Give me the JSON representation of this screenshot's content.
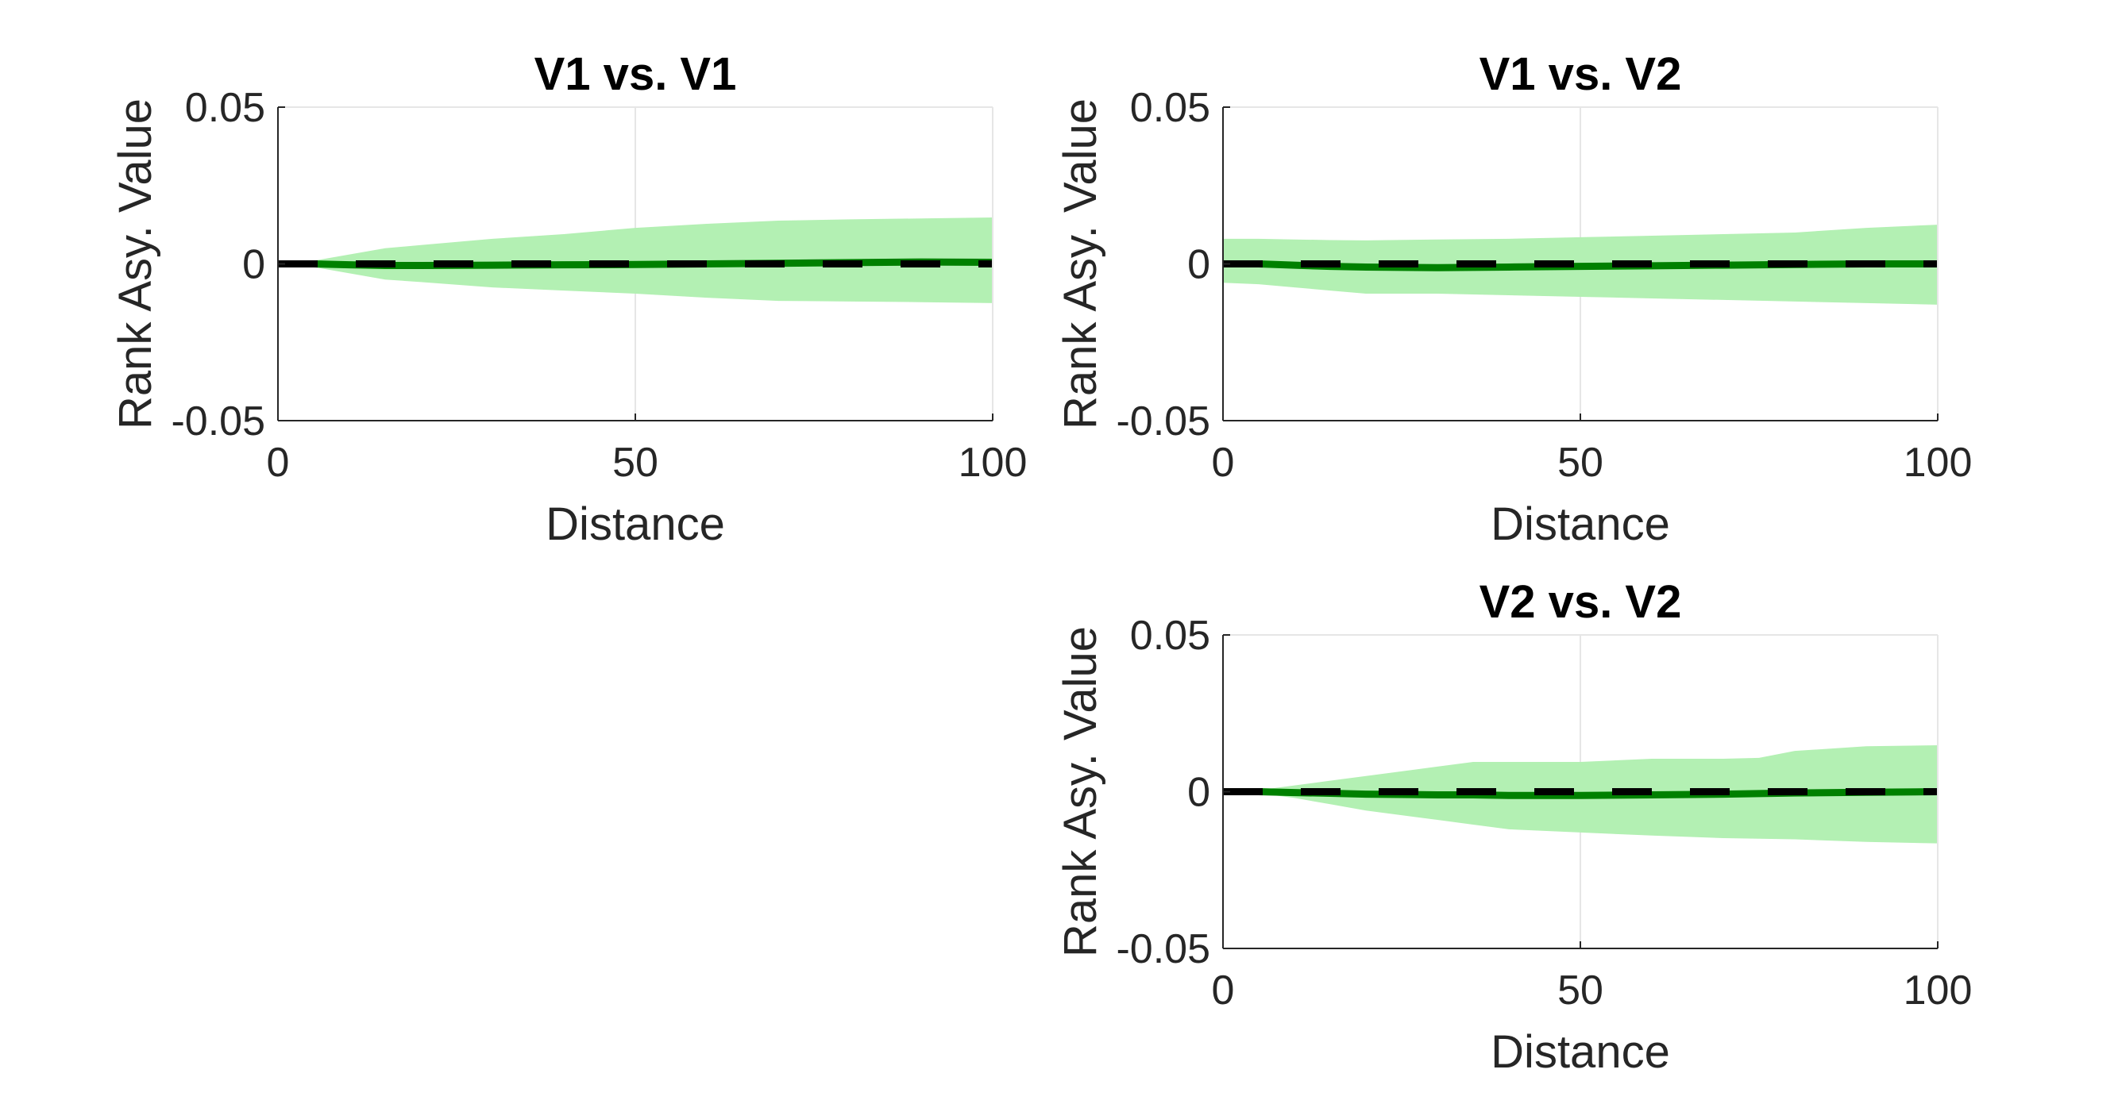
{
  "colors": {
    "band_fill": "#b3f0b3",
    "mean_line": "#008000",
    "zero_line": "#000000",
    "axis": "#262626",
    "grid": "#e6e6e6"
  },
  "chart_data": [
    {
      "type": "area",
      "title": "V1 vs. V1",
      "xlabel": "Distance",
      "ylabel": "Rank Asy. Value",
      "xlim": [
        0,
        100
      ],
      "ylim": [
        -0.05,
        0.05
      ],
      "xticks": [
        0,
        50,
        100
      ],
      "yticks": [
        -0.05,
        0,
        0.05
      ],
      "xtick_labels": [
        "0",
        "50",
        "100"
      ],
      "ytick_labels": [
        "-0.05",
        "0",
        "0.05"
      ],
      "grid": "vertical at x=50",
      "x": [
        0,
        5,
        10,
        15,
        20,
        30,
        40,
        50,
        60,
        70,
        80,
        90,
        100
      ],
      "band_upper": [
        0,
        0.001,
        0.003,
        0.005,
        0.006,
        0.008,
        0.0095,
        0.0115,
        0.0128,
        0.0138,
        0.0142,
        0.0145,
        0.0148
      ],
      "band_lower": [
        0,
        -0.001,
        -0.003,
        -0.005,
        -0.0058,
        -0.0075,
        -0.0085,
        -0.0095,
        -0.0108,
        -0.0118,
        -0.012,
        -0.0122,
        -0.0125
      ],
      "mean": [
        0,
        0,
        -0.0003,
        -0.0005,
        -0.0005,
        -0.0004,
        -0.0003,
        -0.0002,
        0,
        0.0002,
        0.0004,
        0.0006,
        0.0005
      ],
      "reference_line": 0
    },
    {
      "type": "area",
      "title": "V1 vs. V2",
      "xlabel": "Distance",
      "ylabel": "Rank Asy. Value",
      "xlim": [
        0,
        100
      ],
      "ylim": [
        -0.05,
        0.05
      ],
      "xticks": [
        0,
        50,
        100
      ],
      "yticks": [
        -0.05,
        0,
        0.05
      ],
      "xtick_labels": [
        "0",
        "50",
        "100"
      ],
      "ytick_labels": [
        "-0.05",
        "0",
        "0.05"
      ],
      "grid": "vertical at x=50",
      "x": [
        0,
        5,
        10,
        15,
        20,
        30,
        40,
        50,
        60,
        70,
        80,
        90,
        100
      ],
      "band_upper": [
        0.008,
        0.008,
        0.0078,
        0.0076,
        0.0075,
        0.0078,
        0.008,
        0.0085,
        0.009,
        0.0095,
        0.01,
        0.0115,
        0.0125
      ],
      "band_lower": [
        -0.006,
        -0.0065,
        -0.0075,
        -0.0085,
        -0.0095,
        -0.0095,
        -0.01,
        -0.0105,
        -0.011,
        -0.0115,
        -0.012,
        -0.0125,
        -0.013
      ],
      "mean": [
        0,
        0,
        -0.0004,
        -0.0008,
        -0.001,
        -0.0012,
        -0.001,
        -0.0008,
        -0.0006,
        -0.0004,
        -0.0002,
        0,
        0
      ],
      "reference_line": 0
    },
    {
      "type": "area",
      "title": "V2 vs. V2",
      "xlabel": "Distance",
      "ylabel": "Rank Asy. Value",
      "xlim": [
        0,
        100
      ],
      "ylim": [
        -0.05,
        0.05
      ],
      "xticks": [
        0,
        50,
        100
      ],
      "yticks": [
        -0.05,
        0,
        0.05
      ],
      "xtick_labels": [
        "0",
        "50",
        "100"
      ],
      "ytick_labels": [
        "-0.05",
        "0",
        "0.05"
      ],
      "grid": "vertical at x=50",
      "x": [
        0,
        5,
        10,
        15,
        20,
        30,
        35,
        40,
        50,
        60,
        70,
        75,
        80,
        90,
        100
      ],
      "band_upper": [
        0,
        0.0005,
        0.002,
        0.0035,
        0.005,
        0.008,
        0.0095,
        0.0095,
        0.0095,
        0.0105,
        0.0105,
        0.0108,
        0.013,
        0.0145,
        0.0148
      ],
      "band_lower": [
        0,
        -0.0005,
        -0.002,
        -0.004,
        -0.006,
        -0.009,
        -0.0105,
        -0.012,
        -0.013,
        -0.014,
        -0.0148,
        -0.015,
        -0.0152,
        -0.016,
        -0.0165
      ],
      "mean": [
        0,
        0,
        -0.0003,
        -0.0005,
        -0.0008,
        -0.001,
        -0.001,
        -0.0012,
        -0.0012,
        -0.001,
        -0.0008,
        -0.0006,
        -0.0004,
        -0.0002,
        0
      ],
      "reference_line": 0
    }
  ]
}
